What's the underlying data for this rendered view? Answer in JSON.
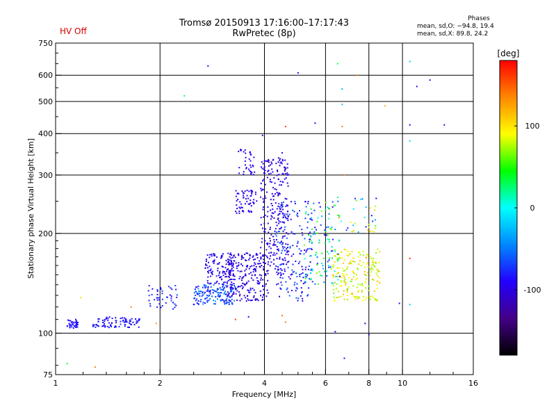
{
  "header": {
    "title": "Tromsø 20150913 17:16:00–17:17:43",
    "subtitle": "RwPretec (8p)",
    "hv_status": "HV Off",
    "phases_title": "Phases",
    "phase_o": "mean, sd,O: −94.8, 19.4",
    "phase_x": "mean, sd,X: 89.8, 24.2"
  },
  "chart_data": {
    "type": "scatter",
    "title": "Tromsø 20150913 17:16:00–17:17:43",
    "subtitle": "RwPretec (8p)",
    "xlabel": "Frequency [MHz]",
    "ylabel": "Stationary phase Virtual Height [km]",
    "x_scale": "log",
    "y_scale": "log",
    "xlim": [
      1,
      16
    ],
    "ylim": [
      75,
      750
    ],
    "x_ticks": [
      1,
      2,
      4,
      6,
      8,
      10,
      16
    ],
    "y_ticks": [
      75,
      100,
      200,
      300,
      400,
      500,
      600,
      750
    ],
    "x_minor_ticks": [
      1.2,
      1.4,
      1.6,
      1.8,
      2.5,
      3,
      3.5,
      4.5,
      5,
      5.5,
      7,
      9,
      12,
      14
    ],
    "y_minor_ticks": [
      80,
      90,
      110,
      120,
      130,
      140,
      150,
      160,
      170,
      180,
      190,
      250,
      350,
      450,
      550,
      650,
      700
    ],
    "grid_x": [
      2,
      4,
      6,
      8,
      10
    ],
    "grid_y": [
      100,
      200,
      300,
      400,
      500,
      600
    ],
    "grid": true,
    "colorbar": {
      "label": "[deg]",
      "range": [
        -180,
        180
      ],
      "ticks": [
        100,
        0,
        -100
      ],
      "colors": [
        "#000000",
        "#440088",
        "#2200ff",
        "#0088ff",
        "#00ffff",
        "#00ff00",
        "#ffff00",
        "#ff8800",
        "#ff0000"
      ]
    },
    "clusters": [
      {
        "x": [
          1.08,
          1.16
        ],
        "y": [
          103,
          110
        ],
        "phase": [
          -95,
          -80
        ],
        "n": 40
      },
      {
        "x": [
          1.28,
          1.75
        ],
        "y": [
          104,
          112
        ],
        "phase": [
          -95,
          -75
        ],
        "n": 90
      },
      {
        "x": [
          1.85,
          2.25
        ],
        "y": [
          118,
          140
        ],
        "phase": [
          -95,
          -65
        ],
        "n": 45
      },
      {
        "x": [
          2.5,
          3.3
        ],
        "y": [
          122,
          140
        ],
        "phase": [
          -90,
          -40
        ],
        "n": 150
      },
      {
        "x": [
          2.7,
          3.3
        ],
        "y": [
          140,
          175
        ],
        "phase": [
          -110,
          -80
        ],
        "n": 120
      },
      {
        "x": [
          3.1,
          4.1
        ],
        "y": [
          125,
          175
        ],
        "phase": [
          -120,
          -80
        ],
        "n": 230
      },
      {
        "x": [
          3.3,
          3.8
        ],
        "y": [
          230,
          270
        ],
        "phase": [
          -110,
          -85
        ],
        "n": 60
      },
      {
        "x": [
          3.35,
          3.75
        ],
        "y": [
          300,
          360
        ],
        "phase": [
          -110,
          -85
        ],
        "n": 35
      },
      {
        "x": [
          3.9,
          4.7
        ],
        "y": [
          150,
          340
        ],
        "phase": [
          -115,
          -85
        ],
        "n": 260
      },
      {
        "x": [
          4.3,
          5.5
        ],
        "y": [
          125,
          250
        ],
        "phase": [
          -110,
          -50
        ],
        "n": 170
      },
      {
        "x": [
          5.2,
          6.6
        ],
        "y": [
          140,
          250
        ],
        "phase": [
          -100,
          80
        ],
        "n": 130
      },
      {
        "x": [
          6.3,
          8.6
        ],
        "y": [
          125,
          180
        ],
        "phase": [
          60,
          120
        ],
        "n": 200
      },
      {
        "x": [
          6.5,
          8.5
        ],
        "y": [
          200,
          260
        ],
        "phase": [
          -95,
          140
        ],
        "n": 35
      }
    ],
    "points": [
      {
        "x": 1.08,
        "y": 81,
        "phase": 30
      },
      {
        "x": 1.3,
        "y": 79,
        "phase": 140
      },
      {
        "x": 1.18,
        "y": 128,
        "phase": 100
      },
      {
        "x": 1.65,
        "y": 120,
        "phase": 140
      },
      {
        "x": 1.95,
        "y": 107,
        "phase": 130
      },
      {
        "x": 2.35,
        "y": 520,
        "phase": 30
      },
      {
        "x": 2.75,
        "y": 640,
        "phase": -100
      },
      {
        "x": 5.0,
        "y": 610,
        "phase": -100
      },
      {
        "x": 6.5,
        "y": 650,
        "phase": 30
      },
      {
        "x": 6.7,
        "y": 545,
        "phase": -30
      },
      {
        "x": 6.7,
        "y": 490,
        "phase": -20
      },
      {
        "x": 7.4,
        "y": 600,
        "phase": 140
      },
      {
        "x": 8.9,
        "y": 485,
        "phase": 120
      },
      {
        "x": 10.5,
        "y": 660,
        "phase": -20
      },
      {
        "x": 11.0,
        "y": 555,
        "phase": -100
      },
      {
        "x": 12.0,
        "y": 580,
        "phase": -100
      },
      {
        "x": 10.5,
        "y": 425,
        "phase": -100
      },
      {
        "x": 10.5,
        "y": 380,
        "phase": -20
      },
      {
        "x": 13.2,
        "y": 425,
        "phase": -100
      },
      {
        "x": 5.6,
        "y": 430,
        "phase": -100
      },
      {
        "x": 4.6,
        "y": 420,
        "phase": 160
      },
      {
        "x": 6.7,
        "y": 420,
        "phase": 140
      },
      {
        "x": 6.8,
        "y": 300,
        "phase": 140
      },
      {
        "x": 8.4,
        "y": 255,
        "phase": -100
      },
      {
        "x": 10.5,
        "y": 168,
        "phase": 160
      },
      {
        "x": 10.5,
        "y": 122,
        "phase": -20
      },
      {
        "x": 9.8,
        "y": 123,
        "phase": -100
      },
      {
        "x": 6.4,
        "y": 101,
        "phase": -100
      },
      {
        "x": 6.8,
        "y": 84,
        "phase": -100
      },
      {
        "x": 7.8,
        "y": 107,
        "phase": -100
      },
      {
        "x": 8.0,
        "y": 99,
        "phase": -100
      },
      {
        "x": 3.3,
        "y": 110,
        "phase": 160
      },
      {
        "x": 3.6,
        "y": 112,
        "phase": -100
      },
      {
        "x": 4.5,
        "y": 113,
        "phase": 140
      },
      {
        "x": 4.6,
        "y": 108,
        "phase": 140
      },
      {
        "x": 3.95,
        "y": 395,
        "phase": -100
      },
      {
        "x": 4.5,
        "y": 350,
        "phase": -100
      }
    ]
  }
}
